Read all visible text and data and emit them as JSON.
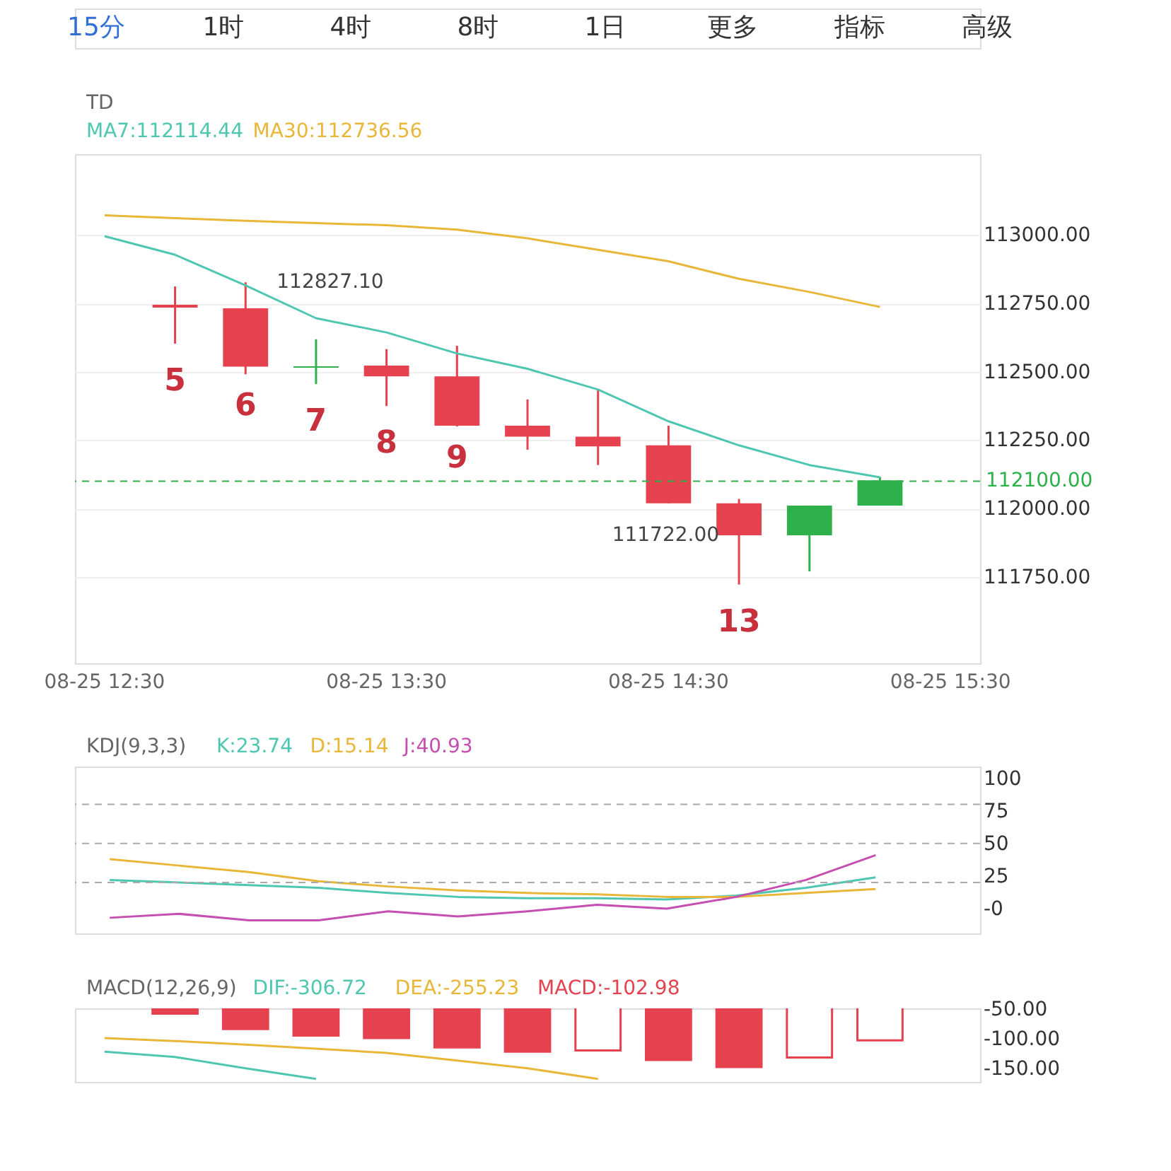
{
  "chart_data": [
    {
      "type": "candlestick",
      "title": "TD",
      "annotations": [
        "15分",
        "1时",
        "4时",
        "8时",
        "1日",
        "更多",
        "指标",
        "高级",
        "112827.10",
        "111722.00",
        "5",
        "6",
        "7",
        "8",
        "9",
        "13"
      ],
      "categories": [
        "08-25 12:30",
        null,
        null,
        null,
        "08-25 13:30",
        null,
        null,
        null,
        "08-25 14:30",
        null,
        null,
        null,
        "08-25 15:30"
      ],
      "ohlc": [
        null,
        [
          112745,
          112812,
          112603,
          112735
        ],
        [
          112732,
          112827.1,
          112491,
          112519
        ],
        [
          112515,
          112619,
          112455,
          112520
        ],
        [
          112523,
          112583,
          112375,
          112483
        ],
        [
          112483,
          112595,
          112300,
          112303
        ],
        [
          112303,
          112399,
          112215,
          112263
        ],
        [
          112263,
          112435,
          112159,
          112227
        ],
        [
          112231,
          112303,
          112019,
          112019
        ],
        [
          112019,
          112035,
          111722,
          111902
        ],
        [
          111902,
          112011,
          111770,
          112011
        ],
        [
          112011,
          112115,
          112011,
          112103
        ],
        null
      ],
      "colors": [
        null,
        "#e5414f",
        "#e5414f",
        "#2eb04b",
        "#e5414f",
        "#e5414f",
        "#e5414f",
        "#e5414f",
        "#e5414f",
        "#e5414f",
        "#2eb04b",
        "#2eb04b",
        null
      ],
      "series": [
        {
          "name": "MA7:112114.44",
          "type": "line",
          "color": "#4fc7b0",
          "values": [
            112996,
            112928,
            112816,
            112696,
            112644,
            112567,
            112511,
            112435,
            112319,
            112231,
            112159,
            112114,
            null
          ]
        },
        {
          "name": "MA30:112736.56",
          "type": "line",
          "color": "#e8b73a",
          "values": [
            113072,
            113062,
            113052,
            113044,
            113036,
            113020,
            112988,
            112946,
            112904,
            112840,
            112792,
            112737,
            null
          ]
        }
      ],
      "ylim": [
        111434,
        113296
      ],
      "yticks": [
        {
          "value": 111750,
          "label": "111750.00"
        },
        {
          "value": 112000,
          "label": "112000.00"
        },
        {
          "value": 112250,
          "label": "112250.00"
        },
        {
          "value": 112500,
          "label": "112500.00"
        },
        {
          "value": 112750,
          "label": "112750.00"
        },
        {
          "value": 113000,
          "label": "113000.00"
        }
      ],
      "ref_lines": [
        {
          "axis": "y",
          "value": 112100,
          "label": "112100.00",
          "color": "#2eb04b",
          "line_style": "dashed"
        }
      ],
      "grid": "y"
    },
    {
      "type": "line",
      "title": "KDJ(9,3,3)",
      "categories": [
        null,
        null,
        null,
        null,
        null,
        null,
        null,
        null,
        null,
        null,
        null,
        null,
        null
      ],
      "series": [
        {
          "name": "K:23.74",
          "color": "#4fc7b0",
          "values": [
            22,
            20,
            18,
            16,
            12,
            9,
            8,
            8,
            7,
            10,
            16,
            24,
            null
          ]
        },
        {
          "name": "D:15.14",
          "color": "#e8b73a",
          "values": [
            38,
            33,
            28,
            21,
            17,
            14,
            12,
            11,
            9,
            9,
            12,
            15,
            null
          ]
        },
        {
          "name": "J:40.93",
          "color": "#c54fb0",
          "values": [
            -7,
            -4,
            -9,
            -9,
            -2,
            -6,
            -2,
            3,
            0,
            9,
            22,
            41,
            null
          ]
        }
      ],
      "ylim": [
        -19,
        109
      ],
      "yticks": [
        {
          "value": 0,
          "label": "-0"
        },
        25,
        50,
        75,
        100
      ],
      "ref_lines": [
        {
          "axis": "y",
          "value": 20,
          "color": "#aaaaaa",
          "line_style": "dashed"
        },
        {
          "axis": "y",
          "value": 50,
          "color": "#aaaaaa",
          "line_style": "dashed"
        },
        {
          "axis": "y",
          "value": 80,
          "color": "#aaaaaa",
          "line_style": "dashed"
        }
      ],
      "tick_labels": "y"
    },
    {
      "type": "bar",
      "title": "MACD(12,26,9)",
      "categories": [
        null,
        null,
        null,
        null,
        null,
        null,
        null,
        null,
        null,
        null,
        null,
        null,
        null
      ],
      "series": [
        {
          "name": "DIF:-306.72",
          "type": "line",
          "color": "#4fc7b0",
          "values": [
            -122,
            -131,
            -150,
            -168,
            null,
            null,
            null,
            null,
            null,
            null,
            null,
            null,
            null
          ]
        },
        {
          "name": "DEA:-255.23",
          "type": "line",
          "color": "#e8b73a",
          "values": [
            -99,
            -104,
            -110,
            -117,
            -124,
            -137,
            -150,
            -168,
            null,
            null,
            null,
            null,
            null
          ]
        },
        {
          "name": "MACD:-102.98",
          "type": "bar",
          "color": "#e5414f",
          "values": [
            null,
            -58,
            -84,
            -95,
            -99,
            -115,
            -122,
            -120,
            -136,
            -148,
            -132,
            -103,
            null
          ],
          "colors": [
            null,
            "#e5414f",
            "#e5414f",
            "#e5414f",
            "#e5414f",
            "#e5414f",
            "#e5414f",
            "#ffffff",
            "#e5414f",
            "#e5414f",
            "#ffffff",
            "#ffffff",
            null
          ]
        }
      ],
      "ylim": [
        -173,
        -49
      ],
      "yticks": [
        {
          "value": -50,
          "label": "-50.00"
        },
        {
          "value": -100,
          "label": "-100.00"
        },
        {
          "value": -150,
          "label": "-150.00"
        }
      ],
      "tick_labels": "y"
    }
  ]
}
